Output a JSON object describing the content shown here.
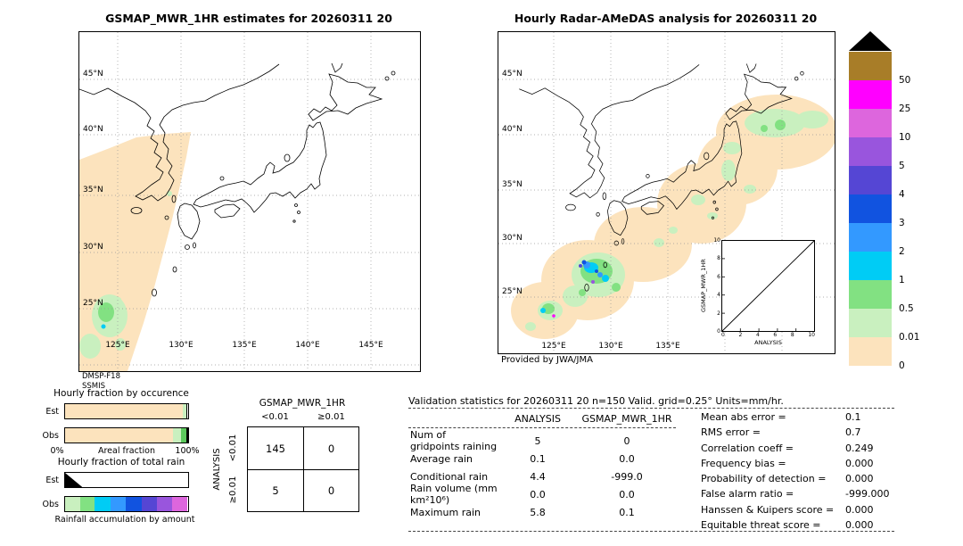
{
  "titles": {
    "map1": "GSMAP_MWR_1HR estimates for 20260311 20",
    "map2": "Hourly Radar-AMeDAS analysis for 20260311 20"
  },
  "map1": {
    "lat_labels": [
      "45°N",
      "40°N",
      "35°N",
      "30°N",
      "25°N"
    ],
    "lon_labels": [
      "125°E",
      "130°E",
      "135°E",
      "140°E",
      "145°E"
    ],
    "source": "DMSP-F18",
    "sensor": "SSMIS"
  },
  "map2": {
    "lat_labels": [
      "45°N",
      "40°N",
      "35°N",
      "30°N",
      "25°N"
    ],
    "lon_labels": [
      "125°E",
      "130°E",
      "135°E"
    ],
    "credit": "Provided by JWA/JMA"
  },
  "chart_data": [
    {
      "id": "hourly_fraction_by_occurrence",
      "type": "bar",
      "orientation": "horizontal-stacked",
      "title": "Hourly fraction by occurence",
      "xlabel": "Areal fraction",
      "x_ticks": [
        "0%",
        "100%"
      ],
      "rows": [
        {
          "label": "Est",
          "segments": [
            {
              "color": "#fce3bd",
              "frac": 0.955
            },
            {
              "color": "#c9f0bf",
              "frac": 0.028
            },
            {
              "color": "#000000",
              "frac": 0.012
            }
          ]
        },
        {
          "label": "Obs",
          "segments": [
            {
              "color": "#fce3bd",
              "frac": 0.875
            },
            {
              "color": "#c9f0bf",
              "frac": 0.07
            },
            {
              "color": "#5cc95c",
              "frac": 0.04
            },
            {
              "color": "#000000",
              "frac": 0.012
            }
          ]
        }
      ]
    },
    {
      "id": "hourly_fraction_of_total_rain",
      "type": "bar",
      "orientation": "horizontal-stacked",
      "title": "Hourly fraction of total rain",
      "xlabel": "Rainfall accumulation by amount",
      "rows": [
        {
          "label": "Est",
          "segments": [
            {
              "color": "#000000",
              "frac": 0.14,
              "shape": "wedge"
            }
          ]
        },
        {
          "label": "Obs",
          "segments": [
            {
              "color": "#c9f0bf",
              "frac": 0.12
            },
            {
              "color": "#82e182",
              "frac": 0.12
            },
            {
              "color": "#00ccf5",
              "frac": 0.13
            },
            {
              "color": "#3399ff",
              "frac": 0.125
            },
            {
              "color": "#1153e0",
              "frac": 0.125
            },
            {
              "color": "#5546d4",
              "frac": 0.125
            },
            {
              "color": "#9955dd",
              "frac": 0.125
            },
            {
              "color": "#dd66dd",
              "frac": 0.125
            }
          ]
        }
      ]
    },
    {
      "id": "contingency_table",
      "type": "table",
      "title": "GSMAP_MWR_1HR",
      "row_axis_label": "ANALYSIS",
      "col_headers": [
        "<0.01",
        "≥0.01"
      ],
      "row_headers": [
        "<0.01",
        "≥0.01"
      ],
      "values": [
        [
          "145",
          "0"
        ],
        [
          "5",
          "0"
        ]
      ]
    },
    {
      "id": "scatter_inset",
      "type": "scatter",
      "xlabel": "ANALYSIS",
      "ylabel": "GSMAP_MWR_1HR",
      "xlim": [
        0,
        10
      ],
      "ylim": [
        0,
        10
      ],
      "ticks": [
        "0",
        "2",
        "4",
        "6",
        "8",
        "10"
      ],
      "diagonal": true,
      "points": []
    },
    {
      "id": "rain_rate_colorbar",
      "type": "legend",
      "units": "mm/hr",
      "overflow_marker": "black-triangle",
      "entries": [
        {
          "label": "50",
          "color": "#a87d28"
        },
        {
          "label": "25",
          "color": "#ff00ff"
        },
        {
          "label": "10",
          "color": "#dd66dd"
        },
        {
          "label": "5",
          "color": "#9955dd"
        },
        {
          "label": "4",
          "color": "#5546d4"
        },
        {
          "label": "3",
          "color": "#1153e0"
        },
        {
          "label": "2",
          "color": "#3399ff"
        },
        {
          "label": "1",
          "color": "#00ccf5"
        },
        {
          "label": "0.5",
          "color": "#82e182"
        },
        {
          "label": "0.01",
          "color": "#c9f0bf"
        },
        {
          "label": "0",
          "color": "#fce3bd"
        }
      ]
    }
  ],
  "validation": {
    "title": "Validation statistics for 20260311 20  n=150 Valid. grid=0.25° Units=mm/hr.",
    "col_headers": [
      "ANALYSIS",
      "GSMAP_MWR_1HR"
    ],
    "rows": [
      {
        "label": "Num of gridpoints raining",
        "analysis": "5",
        "gsmap": "0"
      },
      {
        "label": "Average rain",
        "analysis": "0.1",
        "gsmap": "0.0"
      },
      {
        "label": "Conditional rain",
        "analysis": "4.4",
        "gsmap": "-999.0"
      },
      {
        "label": "Rain volume (mm km²10⁶)",
        "analysis": "0.0",
        "gsmap": "0.0"
      },
      {
        "label": "Maximum rain",
        "analysis": "5.8",
        "gsmap": "0.1"
      }
    ],
    "scores": [
      {
        "label": "Mean abs error",
        "value": "0.1"
      },
      {
        "label": "RMS error",
        "value": "0.7"
      },
      {
        "label": "Correlation coeff",
        "value": "0.249"
      },
      {
        "label": "Frequency bias",
        "value": "0.000"
      },
      {
        "label": "Probability of detection",
        "value": "0.000"
      },
      {
        "label": "False alarm ratio",
        "value": "-999.000"
      },
      {
        "label": "Hanssen & Kuipers score",
        "value": "0.000"
      },
      {
        "label": "Equitable threat score",
        "value": "0.000"
      }
    ]
  }
}
